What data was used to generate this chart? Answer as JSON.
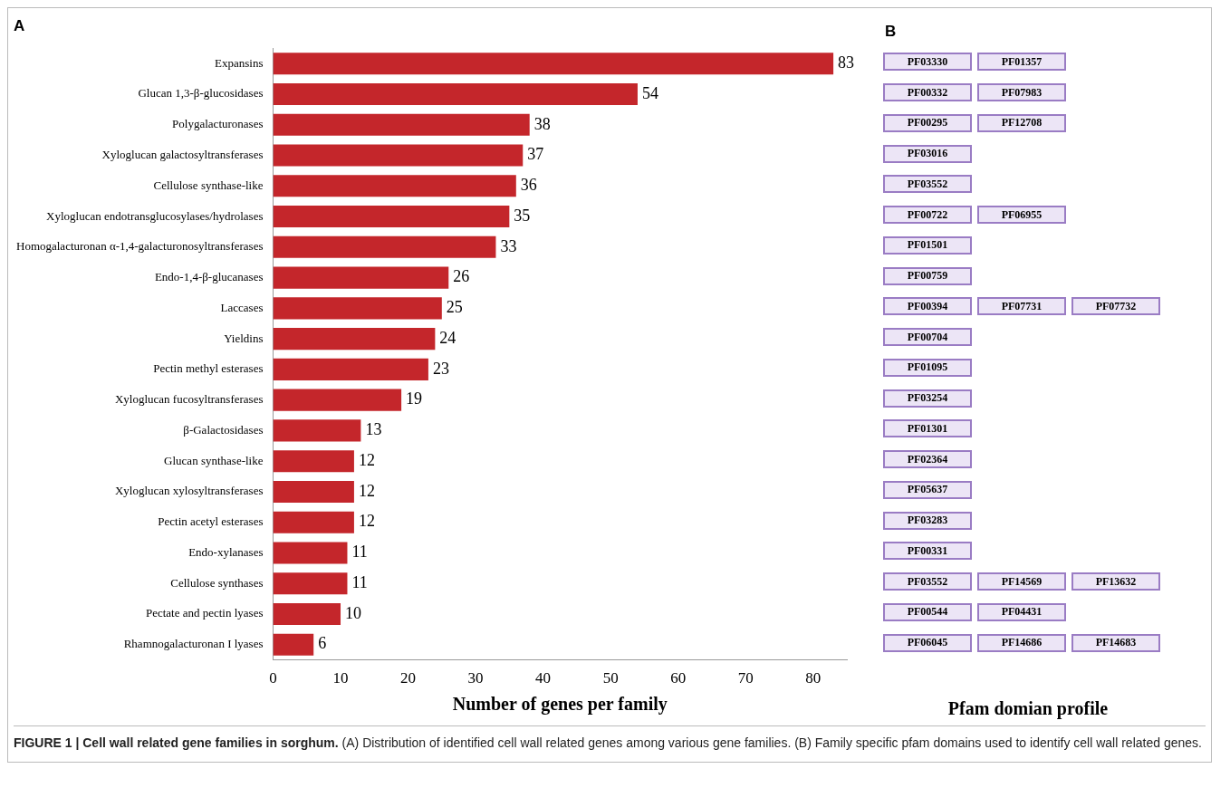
{
  "chart_data": [
    {
      "type": "bar",
      "orientation": "horizontal",
      "title": "A",
      "xlabel": "Number of genes per family",
      "categories": [
        "Expansins",
        "Glucan 1,3-β-glucosidases",
        "Polygalacturonases",
        "Xyloglucan galactosyltransferases",
        "Cellulose synthase-like",
        "Xyloglucan endotransglucosylases/hydrolases",
        "Homogalacturonan α-1,4-galacturonosyltransferases",
        "Endo-1,4-β-glucanases",
        "Laccases",
        "Yieldins",
        "Pectin methyl esterases",
        "Xyloglucan fucosyltransferases",
        "β-Galactosidases",
        "Glucan synthase-like",
        "Xyloglucan xylosyltransferases",
        "Pectin acetyl esterases",
        "Endo-xylanases",
        "Cellulose synthases",
        "Pectate and pectin lyases",
        "Rhamnogalacturonan I lyases"
      ],
      "values": [
        83,
        54,
        38,
        37,
        36,
        35,
        33,
        26,
        25,
        24,
        23,
        19,
        13,
        12,
        12,
        12,
        11,
        11,
        10,
        6
      ],
      "color": "#c4262b",
      "xlim": [
        0,
        85
      ],
      "xticks": [
        0,
        10,
        20,
        30,
        40,
        50,
        60,
        70,
        80
      ],
      "grid": false,
      "legend": false,
      "data_labels": true,
      "annotations": [
        "FIGURE 1 | Cell wall related gene families in sorghum.",
        "(A) Distribution of identified cell wall related genes among various gene families.",
        "(B) Family specific pfam domains used to identify cell wall related genes."
      ]
    },
    {
      "type": "other",
      "title": "B",
      "xlabel": "Pfam domian profile",
      "cell_labels": [
        [
          "PF03330",
          "PF01357"
        ],
        [
          "PF00332",
          "PF07983"
        ],
        [
          "PF00295",
          "PF12708"
        ],
        [
          "PF03016"
        ],
        [
          "PF03552"
        ],
        [
          "PF00722",
          "PF06955"
        ],
        [
          "PF01501"
        ],
        [
          "PF00759"
        ],
        [
          "PF00394",
          "PF07731",
          "PF07732"
        ],
        [
          "PF00704"
        ],
        [
          "PF01095"
        ],
        [
          "PF03254"
        ],
        [
          "PF01301"
        ],
        [
          "PF02364"
        ],
        [
          "PF05637"
        ],
        [
          "PF03283"
        ],
        [
          "PF00331"
        ],
        [
          "PF03552",
          "PF14569",
          "PF13632"
        ],
        [
          "PF00544",
          "PF04431"
        ],
        [
          "PF06045",
          "PF14686",
          "PF14683"
        ]
      ]
    }
  ]
}
